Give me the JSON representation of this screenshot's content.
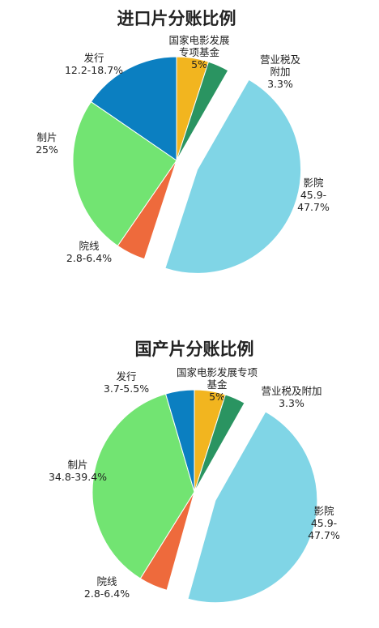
{
  "chart_data": [
    {
      "type": "pie",
      "title": "进口片分账比例",
      "slices": [
        {
          "label_lines": [
            "国家电影发展",
            "专项基金",
            "5%"
          ],
          "value": 5,
          "color": "#f2b51f"
        },
        {
          "label_lines": [
            "营业税及",
            "附加",
            "3.3%"
          ],
          "value": 3.3,
          "color": "#2a9461",
          "explode": false
        },
        {
          "label_lines": [
            "影院",
            "45.9-",
            "47.7%"
          ],
          "value": 46.8,
          "color": "#80d5e6",
          "explode": true
        },
        {
          "label_lines": [
            "院线",
            "2.8-6.4%"
          ],
          "value": 4.6,
          "color": "#ee6a3c"
        },
        {
          "label_lines": [
            "制片",
            "25%"
          ],
          "value": 25,
          "color": "#72e472"
        },
        {
          "label_lines": [
            "发行",
            "12.2-18.7%"
          ],
          "value": 15.45,
          "color": "#0b7fc1"
        }
      ]
    },
    {
      "type": "pie",
      "title": "国产片分账比例",
      "slices": [
        {
          "label_lines": [
            "国家电影发展专项",
            "基金",
            "5%"
          ],
          "value": 5,
          "color": "#f2b51f"
        },
        {
          "label_lines": [
            "营业税及附加",
            "3.3%"
          ],
          "value": 3.3,
          "color": "#2a9461"
        },
        {
          "label_lines": [
            "影院",
            "45.9-",
            "47.7%"
          ],
          "value": 46.8,
          "color": "#80d5e6",
          "explode": true
        },
        {
          "label_lines": [
            "院线",
            "2.8-6.4%"
          ],
          "value": 4.6,
          "color": "#ee6a3c"
        },
        {
          "label_lines": [
            "制片",
            "34.8-39.4%"
          ],
          "value": 37.1,
          "color": "#72e472"
        },
        {
          "label_lines": [
            "发行",
            "3.7-5.5%"
          ],
          "value": 4.6,
          "color": "#0b7fc1"
        }
      ]
    }
  ]
}
